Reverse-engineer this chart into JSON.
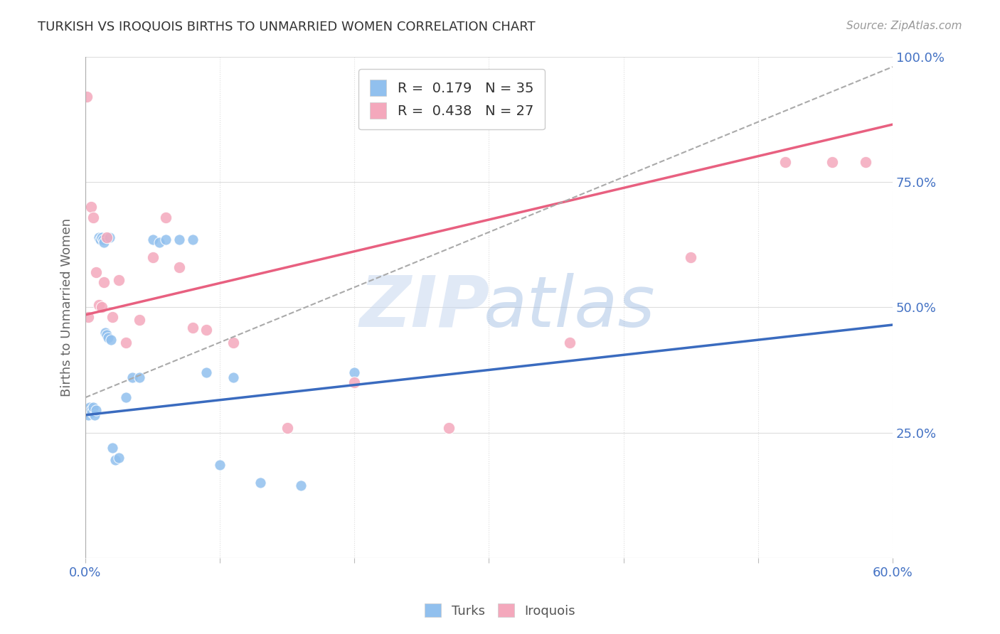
{
  "title": "TURKISH VS IROQUOIS BIRTHS TO UNMARRIED WOMEN CORRELATION CHART",
  "source": "Source: ZipAtlas.com",
  "ylabel": "Births to Unmarried Women",
  "xlim": [
    0.0,
    0.6
  ],
  "ylim": [
    0.0,
    1.0
  ],
  "xtick_positions": [
    0.0,
    0.1,
    0.2,
    0.3,
    0.4,
    0.5,
    0.6
  ],
  "xticklabels": [
    "0.0%",
    "",
    "",
    "",
    "",
    "",
    "60.0%"
  ],
  "ytick_positions": [
    0.25,
    0.5,
    0.75,
    1.0
  ],
  "ytick_labels": [
    "25.0%",
    "50.0%",
    "75.0%",
    "100.0%"
  ],
  "turks_color": "#91C0EE",
  "iroquois_color": "#F4A8BC",
  "turks_line_color": "#3A6BBF",
  "iroquois_line_color": "#E86080",
  "R_turks": 0.179,
  "N_turks": 35,
  "R_iroquois": 0.438,
  "N_iroquois": 27,
  "turks_x": [
    0.001,
    0.002,
    0.003,
    0.004,
    0.005,
    0.006,
    0.007,
    0.008,
    0.01,
    0.011,
    0.012,
    0.013,
    0.014,
    0.015,
    0.016,
    0.017,
    0.018,
    0.019,
    0.02,
    0.022,
    0.025,
    0.03,
    0.035,
    0.04,
    0.05,
    0.055,
    0.06,
    0.07,
    0.08,
    0.09,
    0.1,
    0.11,
    0.13,
    0.16,
    0.2
  ],
  "turks_y": [
    0.29,
    0.285,
    0.3,
    0.295,
    0.29,
    0.3,
    0.285,
    0.295,
    0.64,
    0.635,
    0.64,
    0.635,
    0.63,
    0.45,
    0.445,
    0.44,
    0.64,
    0.435,
    0.22,
    0.195,
    0.2,
    0.32,
    0.36,
    0.36,
    0.635,
    0.63,
    0.635,
    0.635,
    0.635,
    0.37,
    0.185,
    0.36,
    0.15,
    0.145,
    0.37
  ],
  "iroquois_x": [
    0.001,
    0.002,
    0.004,
    0.006,
    0.008,
    0.01,
    0.012,
    0.014,
    0.016,
    0.02,
    0.025,
    0.03,
    0.04,
    0.05,
    0.06,
    0.07,
    0.08,
    0.09,
    0.11,
    0.15,
    0.2,
    0.27,
    0.36,
    0.45,
    0.52,
    0.555,
    0.58
  ],
  "iroquois_y": [
    0.92,
    0.48,
    0.7,
    0.68,
    0.57,
    0.505,
    0.5,
    0.55,
    0.64,
    0.48,
    0.555,
    0.43,
    0.475,
    0.6,
    0.68,
    0.58,
    0.46,
    0.455,
    0.43,
    0.26,
    0.35,
    0.26,
    0.43,
    0.6,
    0.79,
    0.79,
    0.79
  ],
  "turks_trend": [
    0.0,
    0.6,
    0.285,
    0.465
  ],
  "iroquois_trend": [
    0.0,
    0.6,
    0.485,
    0.865
  ],
  "dashed_trend": [
    0.0,
    0.6,
    0.32,
    0.98
  ],
  "background_color": "#FFFFFF",
  "grid_color": "#DDDDDD",
  "grid_color_h": "#DDDDDD"
}
